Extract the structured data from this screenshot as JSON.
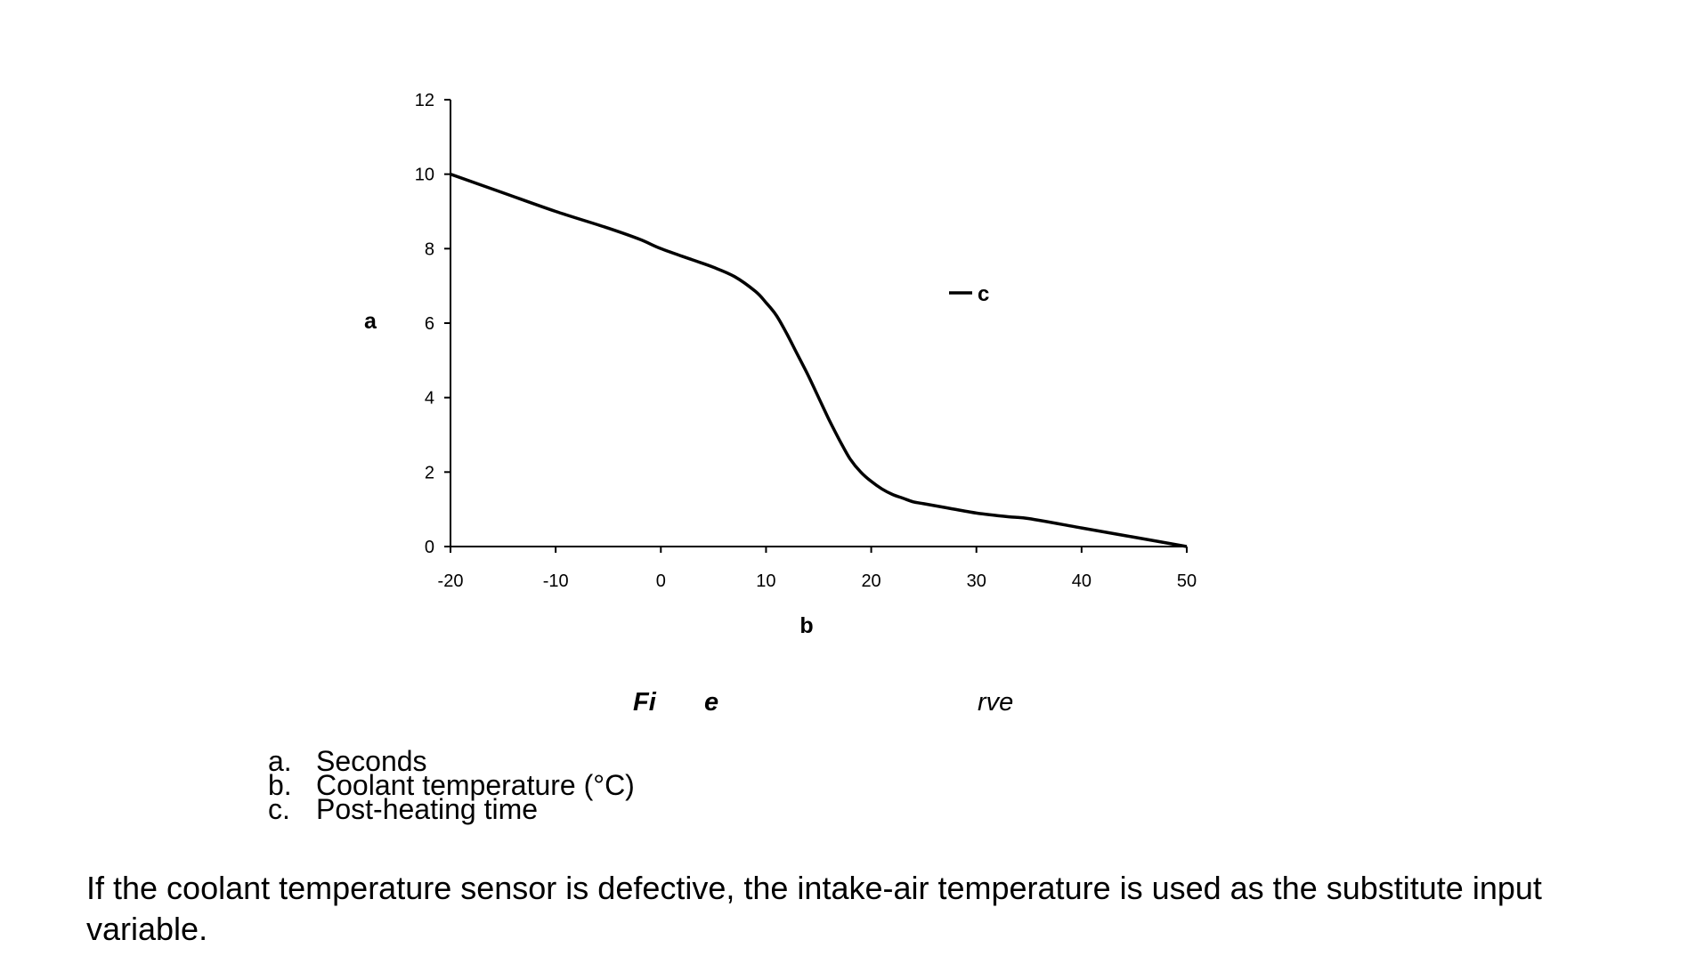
{
  "chart_data": {
    "type": "line",
    "title": "",
    "xlabel": "b",
    "ylabel": "a",
    "xlim": [
      -20,
      50
    ],
    "ylim": [
      0,
      12
    ],
    "x_ticks": [
      "-20",
      "-10",
      "0",
      "10",
      "20",
      "30",
      "40",
      "50"
    ],
    "y_ticks": [
      "0",
      "2",
      "4",
      "6",
      "8",
      "10",
      "12"
    ],
    "grid": false,
    "legend_position": "right",
    "series": [
      {
        "name": "c",
        "color": "#000000",
        "x": [
          -20,
          -15,
          -10,
          -5,
          -2,
          0,
          3,
          5,
          7,
          9,
          10,
          11,
          12,
          13,
          14,
          15,
          16,
          17,
          18,
          19,
          20,
          21,
          22,
          23,
          24,
          25,
          27,
          30,
          33,
          35,
          40,
          45,
          50
        ],
        "y": [
          10.0,
          9.5,
          9.0,
          8.55,
          8.25,
          8.0,
          7.7,
          7.5,
          7.25,
          6.85,
          6.55,
          6.2,
          5.7,
          5.15,
          4.6,
          4.0,
          3.4,
          2.85,
          2.35,
          2.0,
          1.75,
          1.55,
          1.4,
          1.3,
          1.2,
          1.15,
          1.05,
          0.9,
          0.8,
          0.75,
          0.5,
          0.25,
          0.0
        ]
      }
    ]
  },
  "caption": {
    "part1": "Fi",
    "part2": "e",
    "part3": "rve"
  },
  "legend_list": [
    {
      "letter": "a.",
      "text": "Seconds"
    },
    {
      "letter": "b.",
      "text": "Coolant temperature (°C)"
    },
    {
      "letter": "c.",
      "text": "Post-heating time"
    }
  ],
  "body_text": "If the coolant temperature sensor is defective, the intake-air temperature is used as the substitute input variable."
}
